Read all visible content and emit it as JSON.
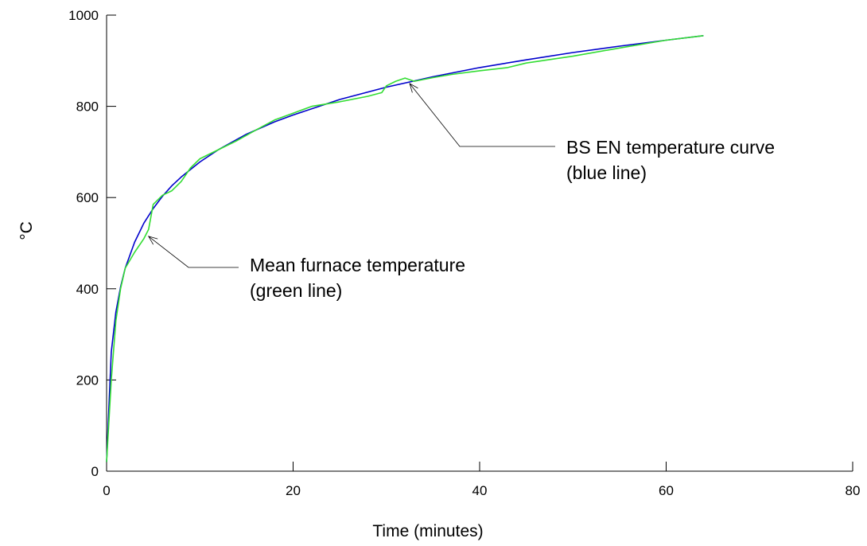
{
  "chart_data": {
    "type": "line",
    "title": "",
    "xlabel": "Time (minutes)",
    "ylabel": "°C",
    "xlim": [
      0,
      80
    ],
    "ylim": [
      0,
      1000
    ],
    "x_ticks": [
      "0",
      "20",
      "40",
      "60",
      "80"
    ],
    "y_ticks": [
      "0",
      "200",
      "400",
      "600",
      "800",
      "1000"
    ],
    "grid": false,
    "series": [
      {
        "key": "bs-en-curve",
        "color": "#0000cc",
        "x": [
          0,
          0.5,
          1,
          1.5,
          2,
          3,
          4,
          5,
          6,
          7,
          8,
          10,
          12,
          15,
          18,
          20,
          25,
          30,
          35,
          40,
          45,
          50,
          55,
          60,
          64
        ],
        "y": [
          20,
          261,
          349,
          404,
          445,
          502,
          544,
          576,
          603,
          626,
          645,
          678,
          705,
          739,
          766,
          781,
          815,
          842,
          865,
          885,
          902,
          918,
          932,
          945,
          955
        ]
      },
      {
        "key": "mean-furnace",
        "color": "#33dd33",
        "x": [
          0,
          0.5,
          1,
          1.5,
          2,
          3,
          4,
          4.5,
          5,
          6,
          7,
          8,
          9,
          10,
          12,
          14,
          16,
          18,
          20,
          22,
          25,
          28,
          29.5,
          30,
          31,
          32,
          33,
          35,
          37,
          40,
          43,
          45,
          50,
          55,
          60,
          64
        ],
        "y": [
          20,
          200,
          330,
          400,
          445,
          480,
          510,
          530,
          585,
          605,
          615,
          635,
          665,
          685,
          705,
          725,
          748,
          770,
          785,
          800,
          810,
          822,
          830,
          845,
          855,
          862,
          855,
          863,
          870,
          878,
          885,
          895,
          910,
          928,
          945,
          955
        ]
      }
    ],
    "annotations": [
      {
        "key": "blue",
        "lines": [
          "BS EN temperature curve",
          "(blue line)"
        ],
        "points_to": [
          32.5,
          850
        ]
      },
      {
        "key": "green",
        "lines": [
          "Mean furnace temperature",
          "(green line)"
        ],
        "points_to": [
          4.5,
          515
        ]
      }
    ]
  }
}
